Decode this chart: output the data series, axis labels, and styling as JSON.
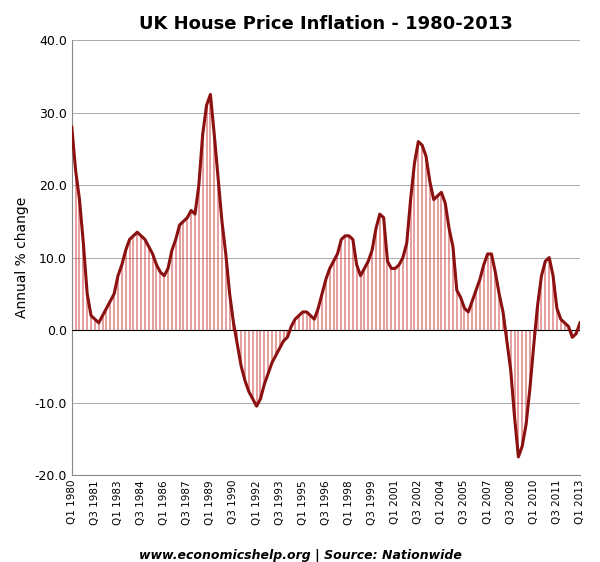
{
  "title": "UK House Price Inflation - 1980-2013",
  "ylabel": "Annual % change",
  "source_text": "www.economicshelp.org | Source: Nationwide",
  "line_color": "#8B1010",
  "fill_color": "#CC3333",
  "background_color": "#FFFFFF",
  "ylim": [
    -20.0,
    40.0
  ],
  "yticks": [
    -20.0,
    -10.0,
    0.0,
    10.0,
    20.0,
    30.0,
    40.0
  ],
  "displayed_xtick_labels": [
    "Q1 1980",
    "Q3 1981",
    "Q1 1983",
    "Q3 1984",
    "Q1 1986",
    "Q3 1987",
    "Q1 1989",
    "Q3 1990",
    "Q1 1992",
    "Q3 1993",
    "Q1 1995",
    "Q3 1996",
    "Q1 1998",
    "Q3 1999",
    "Q1 2001",
    "Q3 2002",
    "Q1 2004",
    "Q3 2005",
    "Q1 2007",
    "Q3 2008",
    "Q1 2010",
    "Q3 2011",
    "Q1 2013"
  ],
  "values": [
    28.0,
    22.0,
    18.0,
    12.0,
    5.0,
    2.0,
    1.5,
    1.0,
    2.0,
    3.0,
    4.0,
    5.0,
    7.5,
    9.0,
    11.0,
    12.5,
    13.0,
    13.5,
    13.0,
    12.5,
    11.5,
    10.5,
    9.0,
    8.0,
    7.5,
    8.5,
    11.0,
    12.5,
    14.5,
    15.0,
    15.5,
    16.5,
    16.0,
    20.0,
    27.0,
    31.0,
    32.5,
    27.0,
    21.0,
    15.0,
    10.5,
    5.0,
    1.0,
    -2.0,
    -5.0,
    -7.0,
    -8.5,
    -9.5,
    -10.5,
    -9.5,
    -7.5,
    -6.0,
    -4.5,
    -3.5,
    -2.5,
    -1.5,
    -1.0,
    0.5,
    1.5,
    2.0,
    2.5,
    2.5,
    2.0,
    1.5,
    3.0,
    5.0,
    7.0,
    8.5,
    9.5,
    10.5,
    12.5,
    13.0,
    13.0,
    12.5,
    9.0,
    7.5,
    8.5,
    9.5,
    11.0,
    14.0,
    16.0,
    15.5,
    9.5,
    8.5,
    8.5,
    9.0,
    10.0,
    12.0,
    18.0,
    23.0,
    26.0,
    25.5,
    24.0,
    20.5,
    18.0,
    18.5,
    19.0,
    17.5,
    14.0,
    11.5,
    5.5,
    4.5,
    3.0,
    2.5,
    4.0,
    5.5,
    7.0,
    9.0,
    10.5,
    10.5,
    8.0,
    5.0,
    2.5,
    -1.5,
    -5.5,
    -12.0,
    -17.5,
    -16.0,
    -13.0,
    -8.0,
    -2.0,
    3.5,
    7.5,
    9.5,
    10.0,
    7.5,
    3.0,
    1.5,
    1.0,
    0.5,
    -1.0,
    -0.5,
    1.0
  ]
}
